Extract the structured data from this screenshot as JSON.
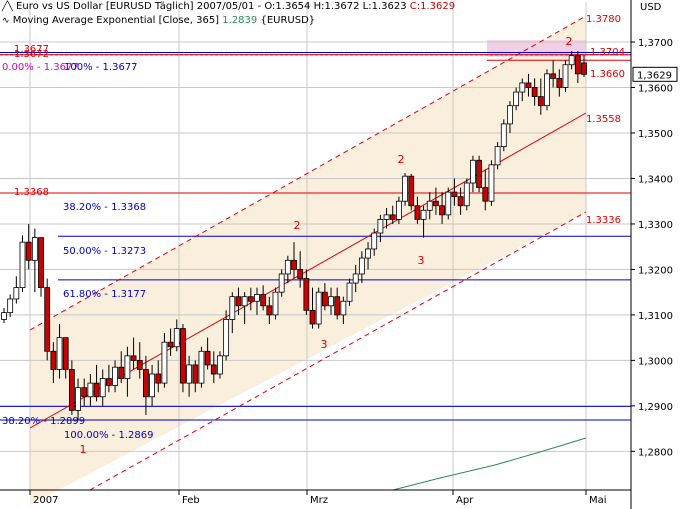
{
  "header": {
    "symbol_line": "Euro vs US Dollar [EURUSD  Täglich] 2007/05/01 - O:1.3654 H:1.3672 L:1.3623",
    "close_label": "C:1.3629",
    "ma_line": "Moving Average Exponential [Close, 365]",
    "ma_value": "1.2839",
    "ma_symbol": "{EURUSD}",
    "currency": "USD"
  },
  "colors": {
    "up": "#ffffff",
    "down": "#cc0000",
    "channel": "#e00000",
    "fib": "#0000c8",
    "ma": "#2e8b57",
    "fill": "#faeedd",
    "band": "#f2cfe4"
  },
  "chart_data": {
    "type": "candlestick",
    "y_ticks": [
      "1,3700",
      "1,3600",
      "1,3500",
      "1,3400",
      "1,3300",
      "1,3200",
      "1,3100",
      "1,3000",
      "1,2900",
      "1,2800"
    ],
    "tick_values": [
      1.37,
      1.36,
      1.35,
      1.34,
      1.33,
      1.32,
      1.31,
      1.3,
      1.29,
      1.28
    ],
    "ylim": [
      1.2715,
      1.3788
    ],
    "x_labels": [
      "2007",
      "Feb",
      "Mrz",
      "Apr",
      "Mai"
    ],
    "last_price": "1,3629",
    "candles": [
      [
        1.309,
        1.3115,
        1.3082,
        1.3105
      ],
      [
        1.3105,
        1.3145,
        1.3095,
        1.3135
      ],
      [
        1.3135,
        1.3185,
        1.3125,
        1.316
      ],
      [
        1.316,
        1.3275,
        1.315,
        1.326
      ],
      [
        1.326,
        1.33,
        1.32,
        1.322
      ],
      [
        1.322,
        1.329,
        1.315,
        1.327
      ],
      [
        1.327,
        1.327,
        1.314,
        1.316
      ],
      [
        1.316,
        1.318,
        1.3,
        1.302
      ],
      [
        1.302,
        1.304,
        1.295,
        1.298
      ],
      [
        1.298,
        1.308,
        1.296,
        1.305
      ],
      [
        1.305,
        1.305,
        1.296,
        1.298
      ],
      [
        1.298,
        1.3,
        1.288,
        1.289
      ],
      [
        1.289,
        1.296,
        1.287,
        1.294
      ],
      [
        1.294,
        1.296,
        1.29,
        1.292
      ],
      [
        1.292,
        1.297,
        1.29,
        1.295
      ],
      [
        1.295,
        1.299,
        1.291,
        1.292
      ],
      [
        1.292,
        1.298,
        1.29,
        1.296
      ],
      [
        1.296,
        1.299,
        1.293,
        1.2945
      ],
      [
        1.2945,
        1.3,
        1.293,
        1.2985
      ],
      [
        1.2985,
        1.302,
        1.295,
        1.296
      ],
      [
        1.296,
        1.303,
        1.292,
        1.301
      ],
      [
        1.301,
        1.305,
        1.298,
        1.3
      ],
      [
        1.3,
        1.304,
        1.296,
        1.298
      ],
      [
        1.298,
        1.301,
        1.288,
        1.292
      ],
      [
        1.292,
        1.299,
        1.29,
        1.297
      ],
      [
        1.297,
        1.3,
        1.293,
        1.295
      ],
      [
        1.295,
        1.306,
        1.294,
        1.304
      ],
      [
        1.304,
        1.307,
        1.301,
        1.303
      ],
      [
        1.303,
        1.309,
        1.302,
        1.307
      ],
      [
        1.307,
        1.308,
        1.293,
        1.295
      ],
      [
        1.295,
        1.301,
        1.292,
        1.299
      ],
      [
        1.299,
        1.3,
        1.293,
        1.295
      ],
      [
        1.295,
        1.303,
        1.294,
        1.302
      ],
      [
        1.302,
        1.305,
        1.298,
        1.299
      ],
      [
        1.299,
        1.302,
        1.295,
        1.297
      ],
      [
        1.297,
        1.302,
        1.296,
        1.301
      ],
      [
        1.301,
        1.311,
        1.3,
        1.309
      ],
      [
        1.309,
        1.315,
        1.306,
        1.314
      ],
      [
        1.314,
        1.316,
        1.31,
        1.312
      ],
      [
        1.312,
        1.315,
        1.308,
        1.314
      ],
      [
        1.314,
        1.316,
        1.311,
        1.313
      ],
      [
        1.313,
        1.316,
        1.31,
        1.3145
      ],
      [
        1.3145,
        1.3165,
        1.311,
        1.312
      ],
      [
        1.312,
        1.314,
        1.308,
        1.31
      ],
      [
        1.31,
        1.316,
        1.309,
        1.315
      ],
      [
        1.315,
        1.32,
        1.314,
        1.319
      ],
      [
        1.319,
        1.323,
        1.317,
        1.322
      ],
      [
        1.322,
        1.326,
        1.318,
        1.32
      ],
      [
        1.32,
        1.324,
        1.316,
        1.318
      ],
      [
        1.318,
        1.32,
        1.31,
        1.311
      ],
      [
        1.311,
        1.316,
        1.307,
        1.308
      ],
      [
        1.308,
        1.316,
        1.307,
        1.315
      ],
      [
        1.315,
        1.317,
        1.311,
        1.312
      ],
      [
        1.312,
        1.316,
        1.31,
        1.314
      ],
      [
        1.314,
        1.316,
        1.309,
        1.31
      ],
      [
        1.31,
        1.314,
        1.308,
        1.313
      ],
      [
        1.313,
        1.318,
        1.312,
        1.317
      ],
      [
        1.317,
        1.321,
        1.315,
        1.319
      ],
      [
        1.319,
        1.324,
        1.317,
        1.3225
      ],
      [
        1.3225,
        1.326,
        1.32,
        1.3245
      ],
      [
        1.3245,
        1.329,
        1.323,
        1.328
      ],
      [
        1.328,
        1.332,
        1.326,
        1.331
      ],
      [
        1.331,
        1.3335,
        1.329,
        1.332
      ],
      [
        1.332,
        1.334,
        1.33,
        1.331
      ],
      [
        1.331,
        1.336,
        1.33,
        1.335
      ],
      [
        1.335,
        1.3412,
        1.334,
        1.3405
      ],
      [
        1.3405,
        1.341,
        1.333,
        1.334
      ],
      [
        1.334,
        1.336,
        1.33,
        1.331
      ],
      [
        1.331,
        1.334,
        1.327,
        1.333
      ],
      [
        1.333,
        1.337,
        1.331,
        1.335
      ],
      [
        1.335,
        1.338,
        1.332,
        1.334
      ],
      [
        1.334,
        1.337,
        1.33,
        1.332
      ],
      [
        1.332,
        1.338,
        1.331,
        1.337
      ],
      [
        1.337,
        1.34,
        1.334,
        1.336
      ],
      [
        1.336,
        1.338,
        1.332,
        1.334
      ],
      [
        1.334,
        1.34,
        1.333,
        1.339
      ],
      [
        1.339,
        1.345,
        1.337,
        1.344
      ],
      [
        1.344,
        1.345,
        1.337,
        1.338
      ],
      [
        1.338,
        1.342,
        1.333,
        1.335
      ],
      [
        1.335,
        1.344,
        1.334,
        1.343
      ],
      [
        1.343,
        1.348,
        1.342,
        1.347
      ],
      [
        1.347,
        1.353,
        1.346,
        1.352
      ],
      [
        1.352,
        1.357,
        1.35,
        1.356
      ],
      [
        1.356,
        1.36,
        1.355,
        1.359
      ],
      [
        1.359,
        1.362,
        1.357,
        1.361
      ],
      [
        1.361,
        1.363,
        1.358,
        1.36
      ],
      [
        1.36,
        1.362,
        1.356,
        1.358
      ],
      [
        1.358,
        1.362,
        1.354,
        1.356
      ],
      [
        1.356,
        1.364,
        1.355,
        1.363
      ],
      [
        1.363,
        1.366,
        1.36,
        1.362
      ],
      [
        1.362,
        1.364,
        1.358,
        1.36
      ],
      [
        1.36,
        1.366,
        1.359,
        1.365
      ],
      [
        1.365,
        1.368,
        1.364,
        1.367
      ],
      [
        1.367,
        1.368,
        1.361,
        1.363
      ],
      [
        1.3654,
        1.3672,
        1.3623,
        1.3629
      ]
    ],
    "channel_labels": [
      "1.3780",
      "1.3704",
      "1.3660",
      "1.3558",
      "1.3368",
      "1.3336"
    ],
    "fib_labels": [
      "1.3677",
      "1.3672",
      "0.00% - 1.3677",
      "100% - 1.3677",
      "38.20% - 1.3368",
      "50.00% - 1.3273",
      "61.80% - 1.3177",
      "38.20% - 1.2899",
      "100.00% - 1.2869"
    ],
    "wave_labels": [
      "1",
      "2",
      "3",
      "2",
      "3",
      "2"
    ]
  }
}
